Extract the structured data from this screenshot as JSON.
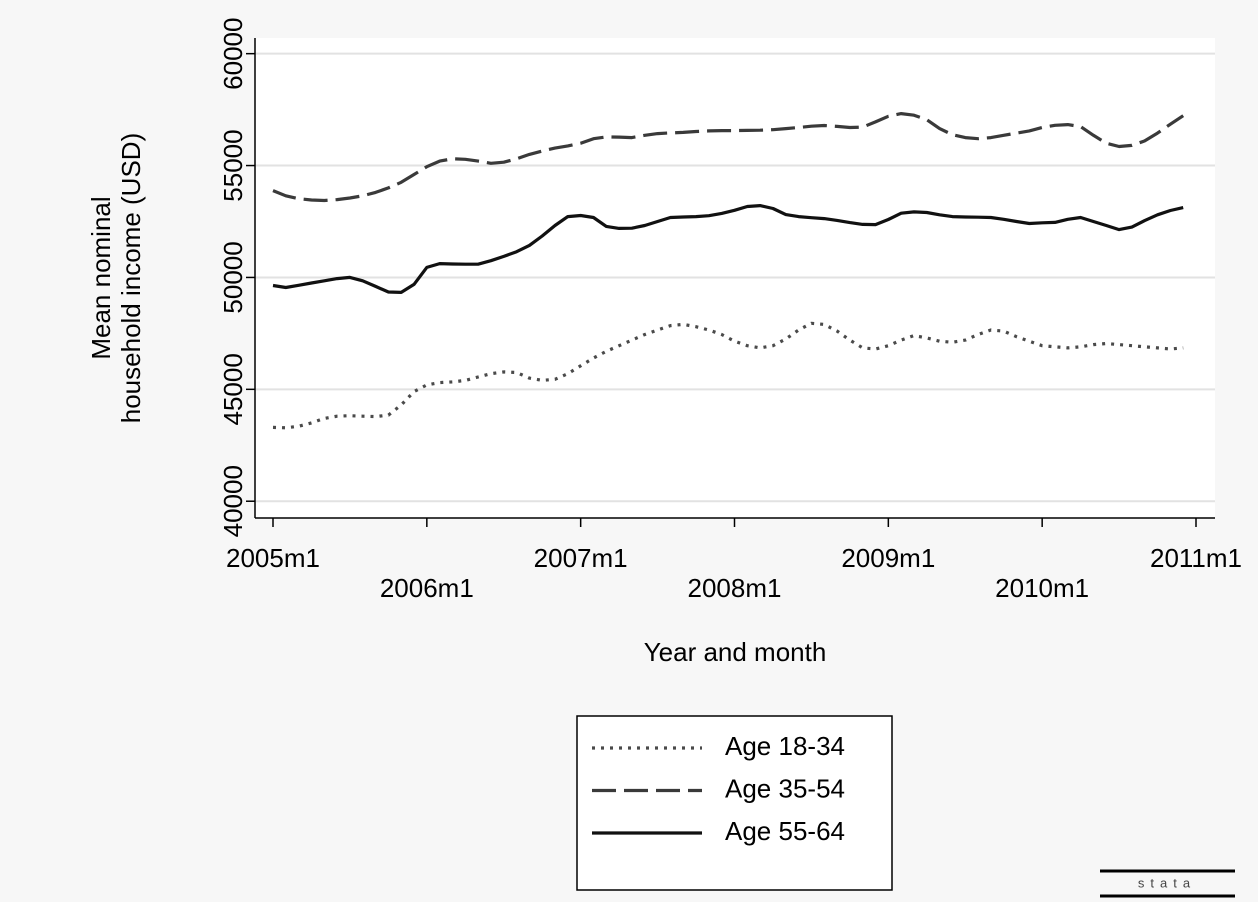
{
  "chart_data": {
    "type": "line",
    "y_label": [
      "Mean nominal",
      "household income (USD)"
    ],
    "x_label": "Year and month",
    "x": [
      "2005m1",
      "2005m2",
      "2005m3",
      "2005m4",
      "2005m5",
      "2005m6",
      "2005m7",
      "2005m8",
      "2005m9",
      "2005m10",
      "2005m11",
      "2005m12",
      "2006m1",
      "2006m2",
      "2006m3",
      "2006m4",
      "2006m5",
      "2006m6",
      "2006m7",
      "2006m8",
      "2006m9",
      "2006m10",
      "2006m11",
      "2006m12",
      "2007m1",
      "2007m2",
      "2007m3",
      "2007m4",
      "2007m5",
      "2007m6",
      "2007m7",
      "2007m8",
      "2007m9",
      "2007m10",
      "2007m11",
      "2007m12",
      "2008m1",
      "2008m2",
      "2008m3",
      "2008m4",
      "2008m5",
      "2008m6",
      "2008m7",
      "2008m8",
      "2008m9",
      "2008m10",
      "2008m11",
      "2008m12",
      "2009m1",
      "2009m2",
      "2009m3",
      "2009m4",
      "2009m5",
      "2009m6",
      "2009m7",
      "2009m8",
      "2009m9",
      "2009m10",
      "2009m11",
      "2009m12",
      "2010m1",
      "2010m2",
      "2010m3",
      "2010m4",
      "2010m5",
      "2010m6",
      "2010m7",
      "2010m8",
      "2010m9",
      "2010m10",
      "2010m11",
      "2010m12"
    ],
    "series": [
      {
        "name": "Age 18-34",
        "color": "#4a4a4a",
        "style": "dotted",
        "values": [
          43300,
          43280,
          43350,
          43500,
          43700,
          43800,
          43820,
          43800,
          43780,
          43850,
          44300,
          44900,
          45200,
          45300,
          45330,
          45400,
          45550,
          45700,
          45780,
          45750,
          45500,
          45400,
          45450,
          45700,
          46050,
          46400,
          46700,
          46950,
          47200,
          47450,
          47650,
          47850,
          47900,
          47800,
          47650,
          47450,
          47150,
          46950,
          46850,
          46950,
          47250,
          47650,
          47950,
          47900,
          47600,
          47200,
          46850,
          46800,
          46950,
          47200,
          47400,
          47300,
          47150,
          47100,
          47200,
          47450,
          47650,
          47600,
          47350,
          47150,
          46950,
          46900,
          46850,
          46900,
          47000,
          47050,
          47000,
          46950,
          46900,
          46850,
          46800,
          46850
        ]
      },
      {
        "name": "Age 35-54",
        "color": "#3a3a3a",
        "style": "dashed",
        "values": [
          53880,
          53650,
          53520,
          53460,
          53440,
          53480,
          53550,
          53650,
          53800,
          54000,
          54250,
          54600,
          54950,
          55200,
          55300,
          55280,
          55200,
          55100,
          55150,
          55300,
          55500,
          55650,
          55780,
          55880,
          56000,
          56200,
          56280,
          56270,
          56250,
          56350,
          56430,
          56460,
          56480,
          56520,
          56550,
          56560,
          56560,
          56570,
          56580,
          56600,
          56650,
          56700,
          56760,
          56790,
          56750,
          56700,
          56720,
          56950,
          57200,
          57320,
          57250,
          57050,
          56650,
          56380,
          56250,
          56200,
          56250,
          56350,
          56450,
          56550,
          56700,
          56800,
          56830,
          56740,
          56350,
          56000,
          55850,
          55900,
          56100,
          56450,
          56850,
          57230
        ]
      },
      {
        "name": "Age 55-64",
        "color": "#111111",
        "style": "solid",
        "values": [
          49640,
          49550,
          49650,
          49750,
          49850,
          49950,
          50000,
          49850,
          49600,
          49350,
          49330,
          49690,
          50450,
          50620,
          50600,
          50590,
          50590,
          50750,
          50940,
          51150,
          51430,
          51850,
          52320,
          52720,
          52770,
          52680,
          52280,
          52190,
          52200,
          52320,
          52500,
          52680,
          52700,
          52720,
          52760,
          52860,
          53000,
          53170,
          53210,
          53080,
          52810,
          52720,
          52670,
          52630,
          52550,
          52450,
          52370,
          52360,
          52590,
          52870,
          52930,
          52900,
          52800,
          52720,
          52700,
          52690,
          52680,
          52600,
          52500,
          52410,
          52440,
          52460,
          52600,
          52680,
          52500,
          52320,
          52140,
          52250,
          52540,
          52800,
          52990,
          53120
        ]
      }
    ],
    "xlim": [
      "2005m1",
      "2011m1"
    ],
    "xticks": [
      "2005m1",
      "2006m1",
      "2007m1",
      "2008m1",
      "2009m1",
      "2010m1",
      "2011m1"
    ],
    "ylim": [
      39250,
      60700
    ],
    "yticks": [
      40000,
      45000,
      50000,
      55000,
      60000
    ],
    "grid": true,
    "legend": "bottom",
    "watermark": "stata"
  }
}
